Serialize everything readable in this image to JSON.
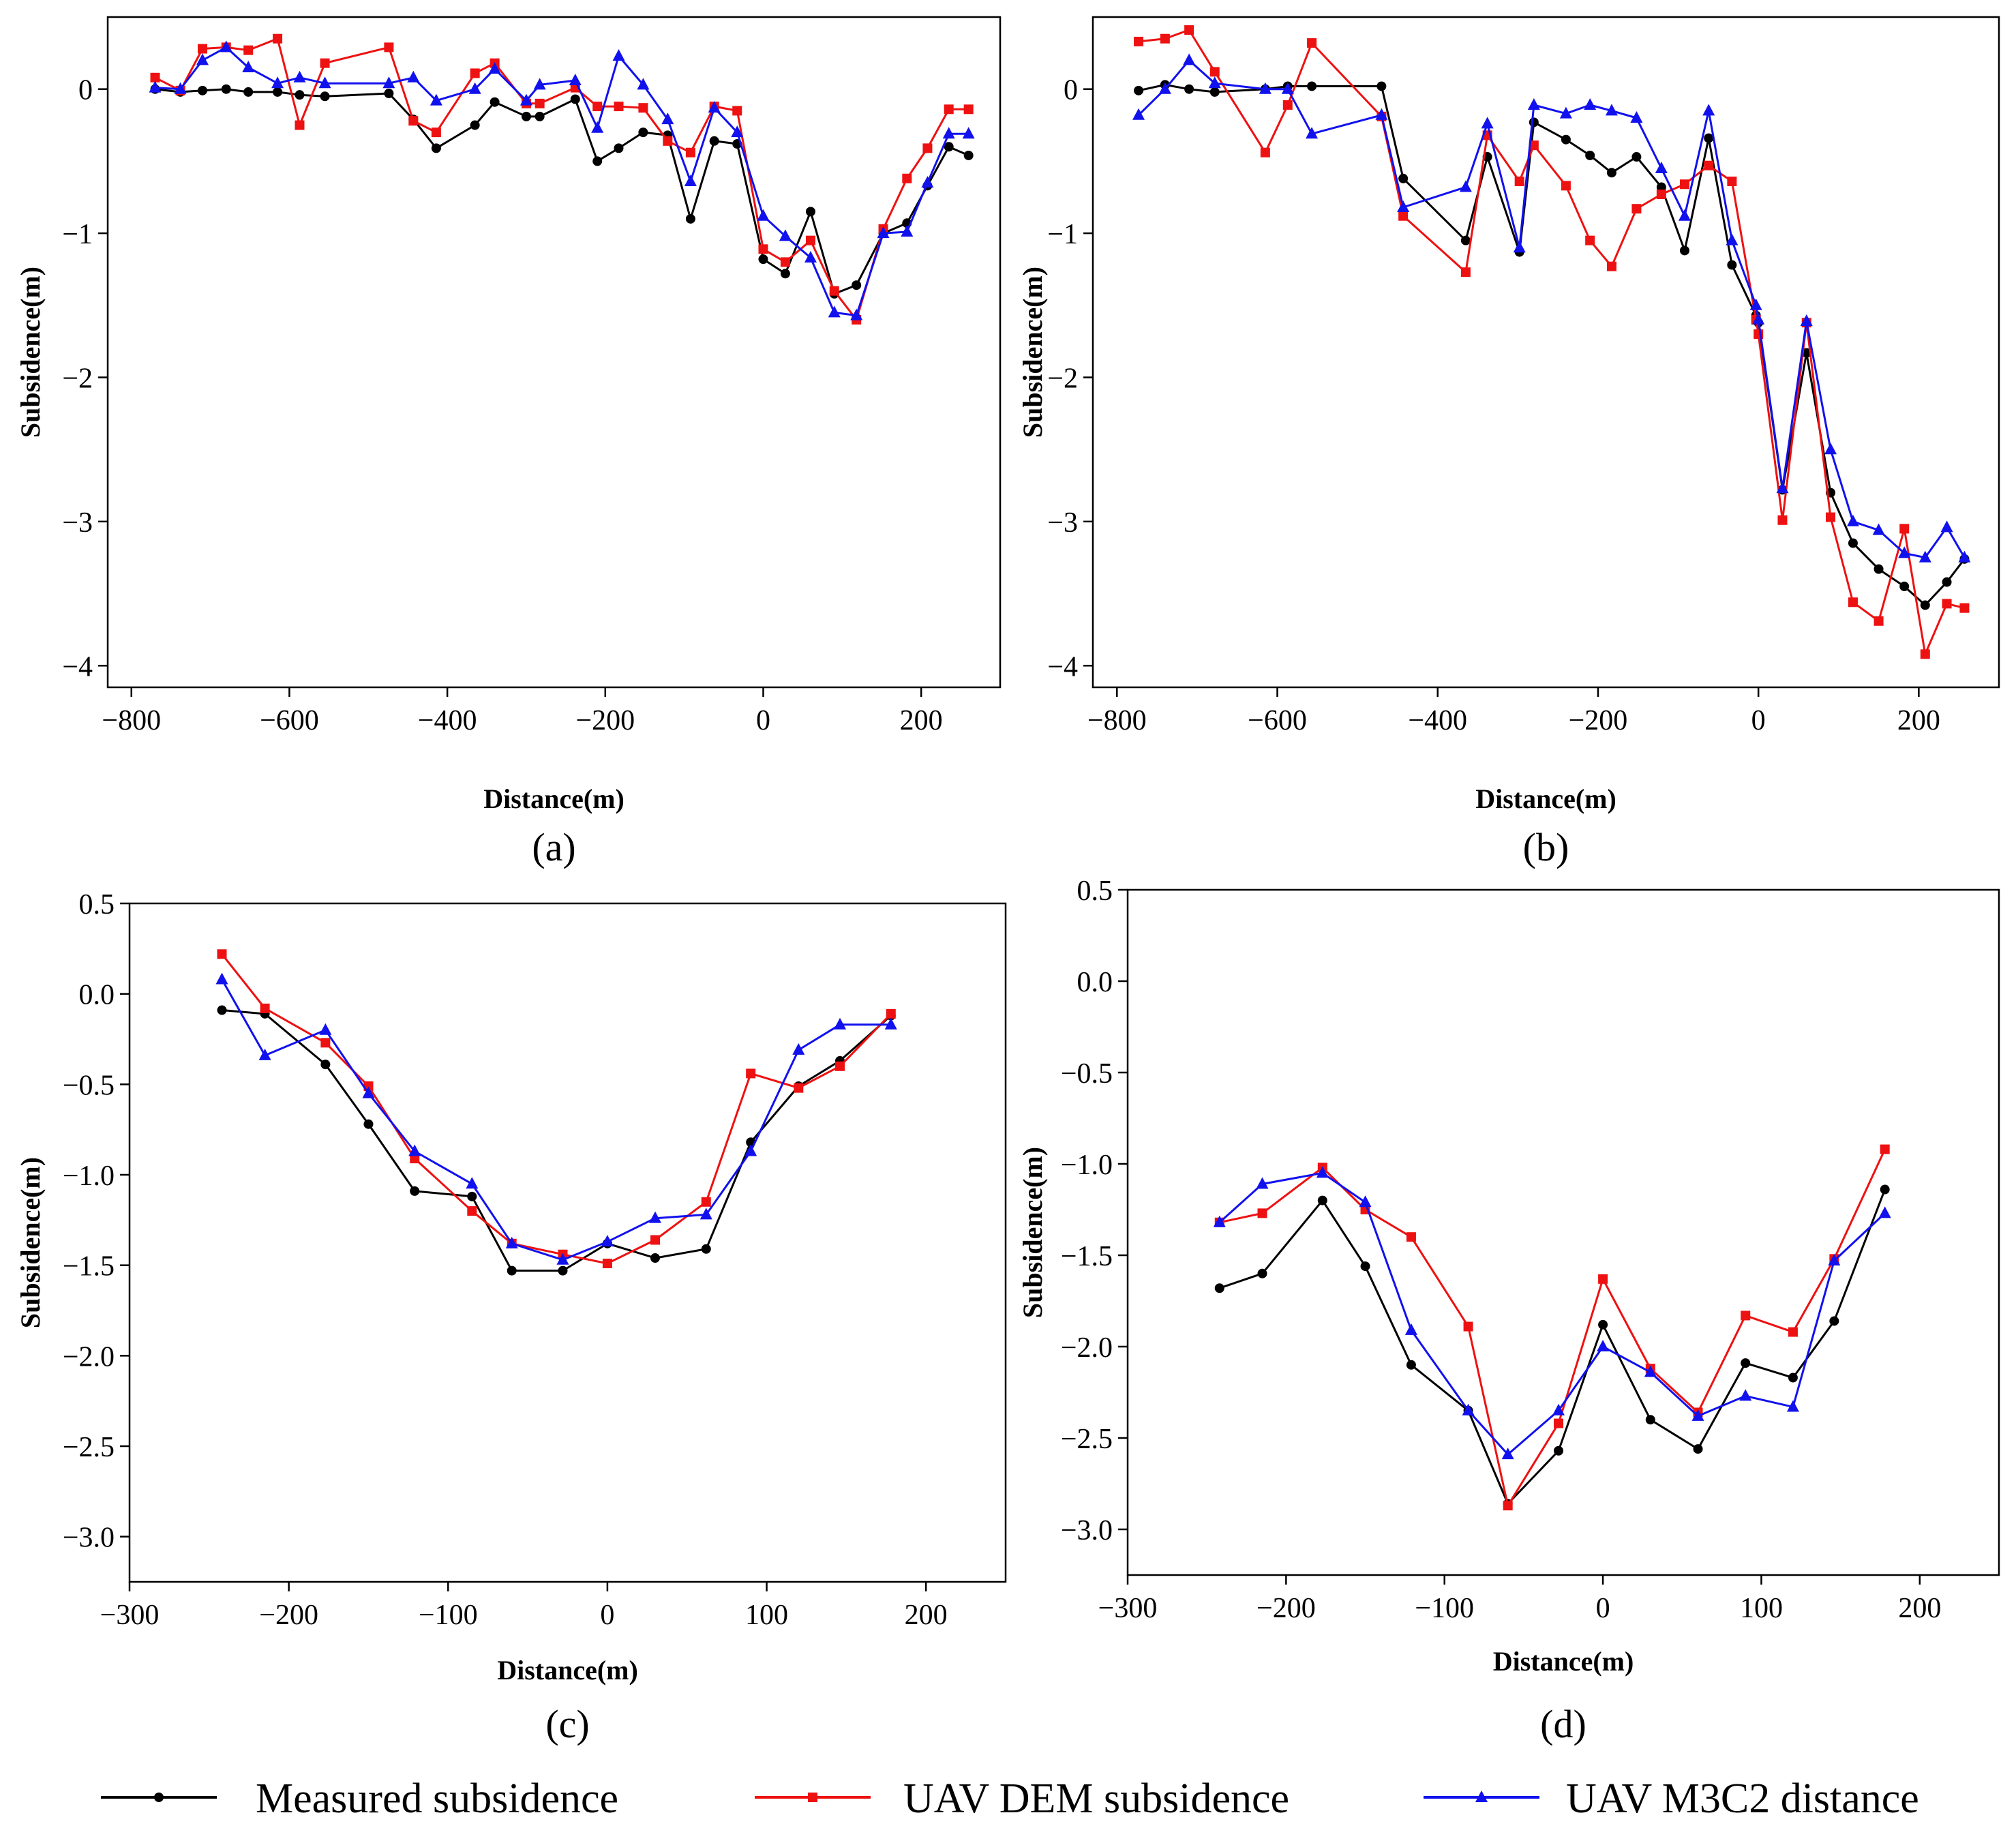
{
  "series_styles": [
    {
      "name": "Measured subsidence",
      "color": "#000000",
      "marker": "circle"
    },
    {
      "name": "UAV DEM subsidence",
      "color": "#ee1111",
      "marker": "square"
    },
    {
      "name": "UAV M3C2 distance",
      "color": "#1111ee",
      "marker": "triangle"
    }
  ],
  "legend": {
    "items": [
      "Measured subsidence",
      "UAV DEM subsidence",
      "UAV M3C2 distance"
    ]
  },
  "chart_data": [
    {
      "id": "a",
      "panel_label": "(a)",
      "type": "line",
      "xlabel": "Distance(m)",
      "ylabel": "Subsidence(m)",
      "xlim": [
        -830,
        300
      ],
      "ylim": [
        -4.15,
        0.5
      ],
      "xticks": [
        -800,
        -600,
        -400,
        -200,
        0,
        200
      ],
      "yticks": [
        -4,
        -3,
        -2,
        -1,
        0
      ],
      "xtick_labels": [
        "−800",
        "−600",
        "−400",
        "−200",
        "0",
        "200"
      ],
      "ytick_labels": [
        "−4",
        "−3",
        "−2",
        "−1",
        "0"
      ],
      "series": [
        {
          "name": "Measured subsidence",
          "x": [
            -770,
            -738,
            -710,
            -680,
            -652,
            -615,
            -587,
            -555,
            -474,
            -443,
            -414,
            -365,
            -340,
            -300,
            -283,
            -238,
            -210,
            -183,
            -152,
            -121,
            -92,
            -62,
            -33,
            0,
            28,
            60,
            90,
            118,
            152,
            182,
            208,
            235,
            260
          ],
          "y": [
            0,
            -0.02,
            -0.01,
            0,
            -0.02,
            -0.02,
            -0.04,
            -0.05,
            -0.03,
            -0.21,
            -0.41,
            -0.25,
            -0.09,
            -0.19,
            -0.19,
            -0.07,
            -0.5,
            -0.41,
            -0.3,
            -0.32,
            -0.9,
            -0.36,
            -0.38,
            -1.18,
            -1.28,
            -0.85,
            -1.42,
            -1.36,
            -1.0,
            -0.93,
            -0.67,
            -0.4,
            -0.46
          ]
        },
        {
          "name": "UAV DEM subsidence",
          "x": [
            -770,
            -738,
            -710,
            -680,
            -652,
            -615,
            -587,
            -555,
            -474,
            -443,
            -414,
            -365,
            -340,
            -300,
            -283,
            -238,
            -210,
            -183,
            -152,
            -121,
            -92,
            -62,
            -33,
            0,
            28,
            60,
            90,
            118,
            152,
            182,
            208,
            235,
            260
          ],
          "y": [
            0.08,
            -0.01,
            0.28,
            0.29,
            0.27,
            0.35,
            -0.25,
            0.18,
            0.29,
            -0.22,
            -0.3,
            0.11,
            0.18,
            -0.1,
            -0.1,
            0.01,
            -0.12,
            -0.12,
            -0.13,
            -0.36,
            -0.44,
            -0.12,
            -0.15,
            -1.11,
            -1.2,
            -1.05,
            -1.4,
            -1.6,
            -0.97,
            -0.62,
            -0.41,
            -0.14,
            -0.14
          ]
        },
        {
          "name": "UAV M3C2 distance",
          "x": [
            -770,
            -738,
            -710,
            -680,
            -652,
            -615,
            -587,
            -555,
            -474,
            -443,
            -414,
            -365,
            -340,
            -300,
            -283,
            -238,
            -210,
            -183,
            -152,
            -121,
            -92,
            -62,
            -33,
            0,
            28,
            60,
            90,
            118,
            152,
            182,
            208,
            235,
            260
          ],
          "y": [
            0.01,
            0.0,
            0.2,
            0.29,
            0.15,
            0.04,
            0.08,
            0.04,
            0.04,
            0.08,
            -0.08,
            0.0,
            0.14,
            -0.08,
            0.03,
            0.06,
            -0.27,
            0.23,
            0.03,
            -0.21,
            -0.64,
            -0.13,
            -0.3,
            -0.88,
            -1.02,
            -1.17,
            -1.55,
            -1.57,
            -1.0,
            -0.99,
            -0.65,
            -0.31,
            -0.31
          ]
        }
      ]
    },
    {
      "id": "b",
      "panel_label": "(b)",
      "type": "line",
      "xlabel": "Distance(m)",
      "ylabel": "Subsidence(m)",
      "xlim": [
        -830,
        300
      ],
      "ylim": [
        -4.15,
        0.5
      ],
      "xticks": [
        -800,
        -600,
        -400,
        -200,
        0,
        200
      ],
      "yticks": [
        -4,
        -3,
        -2,
        -1,
        0
      ],
      "xtick_labels": [
        "−800",
        "−600",
        "−400",
        "−200",
        "0",
        "200"
      ],
      "ytick_labels": [
        "−4",
        "−3",
        "−2",
        "−1",
        "0"
      ],
      "series": [
        {
          "name": "Measured subsidence",
          "x": [
            -773,
            -740,
            -710,
            -678,
            -615,
            -587,
            -557,
            -470,
            -443,
            -365,
            -338,
            -298,
            -280,
            -240,
            -210,
            -183,
            -152,
            -121,
            -92,
            -62,
            -33,
            -3,
            0,
            30,
            60,
            90,
            118,
            150,
            182,
            208,
            235,
            257
          ],
          "y": [
            -0.01,
            0.03,
            0.0,
            -0.02,
            0.0,
            0.02,
            0.02,
            0.02,
            -0.62,
            -1.05,
            -0.47,
            -1.13,
            -0.23,
            -0.35,
            -0.46,
            -0.58,
            -0.47,
            -0.68,
            -1.12,
            -0.34,
            -1.22,
            -1.57,
            -1.62,
            -2.78,
            -1.83,
            -2.8,
            -3.15,
            -3.33,
            -3.45,
            -3.58,
            -3.42,
            -3.26
          ]
        },
        {
          "name": "UAV DEM subsidence",
          "x": [
            -773,
            -740,
            -710,
            -678,
            -615,
            -587,
            -557,
            -470,
            -443,
            -365,
            -338,
            -298,
            -280,
            -240,
            -210,
            -183,
            -152,
            -121,
            -92,
            -62,
            -33,
            -3,
            0,
            30,
            60,
            90,
            118,
            150,
            182,
            208,
            235,
            257
          ],
          "y": [
            0.33,
            0.35,
            0.41,
            0.12,
            -0.44,
            -0.11,
            0.32,
            -0.19,
            -0.88,
            -1.27,
            -0.32,
            -0.64,
            -0.39,
            -0.67,
            -1.05,
            -1.23,
            -0.83,
            -0.73,
            -0.66,
            -0.53,
            -0.64,
            -1.6,
            -1.7,
            -2.99,
            -1.62,
            -2.97,
            -3.56,
            -3.69,
            -3.05,
            -3.92,
            -3.57,
            -3.6
          ]
        },
        {
          "name": "UAV M3C2 distance",
          "x": [
            -773,
            -740,
            -710,
            -678,
            -615,
            -587,
            -557,
            -470,
            -443,
            -365,
            -338,
            -298,
            -280,
            -240,
            -210,
            -183,
            -152,
            -121,
            -92,
            -62,
            -33,
            -3,
            0,
            30,
            60,
            90,
            118,
            150,
            182,
            208,
            235,
            257
          ],
          "y": [
            -0.18,
            0.0,
            0.2,
            0.04,
            0.0,
            0.0,
            -0.31,
            -0.18,
            -0.82,
            -0.68,
            -0.24,
            -1.1,
            -0.11,
            -0.17,
            -0.11,
            -0.15,
            -0.2,
            -0.55,
            -0.88,
            -0.15,
            -1.05,
            -1.5,
            -1.6,
            -2.77,
            -1.61,
            -2.5,
            -3.0,
            -3.06,
            -3.22,
            -3.25,
            -3.04,
            -3.25
          ]
        }
      ]
    },
    {
      "id": "c",
      "panel_label": "(c)",
      "type": "line",
      "xlabel": "Distance(m)",
      "ylabel": "Subsidence(m)",
      "xlim": [
        -300,
        250
      ],
      "ylim": [
        -3.25,
        0.5
      ],
      "xticks": [
        -300,
        -200,
        -100,
        0,
        100,
        200
      ],
      "yticks": [
        0.5,
        0.0,
        -0.5,
        -1.0,
        -1.5,
        -2.0,
        -2.5,
        -3.0
      ],
      "xtick_labels": [
        "−300",
        "−200",
        "−100",
        "0",
        "100",
        "200"
      ],
      "ytick_labels": [
        "0.5",
        "0.0",
        "−0.5",
        "−1.0",
        "−1.5",
        "−2.0",
        "−2.5",
        "−3.0"
      ],
      "series": [
        {
          "name": "Measured subsidence",
          "x": [
            -242,
            -215,
            -177,
            -150,
            -121,
            -85,
            -60,
            -28,
            0,
            30,
            62,
            90,
            120,
            146,
            178
          ],
          "y": [
            -0.09,
            -0.11,
            -0.39,
            -0.72,
            -1.09,
            -1.12,
            -1.53,
            -1.53,
            -1.38,
            -1.46,
            -1.41,
            -0.82,
            -0.51,
            -0.37,
            -0.12
          ]
        },
        {
          "name": "UAV DEM subsidence",
          "x": [
            -242,
            -215,
            -177,
            -150,
            -121,
            -85,
            -60,
            -28,
            0,
            30,
            62,
            90,
            120,
            146,
            178
          ],
          "y": [
            0.22,
            -0.08,
            -0.27,
            -0.51,
            -0.91,
            -1.2,
            -1.38,
            -1.44,
            -1.49,
            -1.36,
            -1.15,
            -0.44,
            -0.52,
            -0.4,
            -0.11
          ]
        },
        {
          "name": "UAV M3C2 distance",
          "x": [
            -242,
            -215,
            -177,
            -150,
            -121,
            -85,
            -60,
            -28,
            0,
            30,
            62,
            90,
            120,
            146,
            178
          ],
          "y": [
            0.08,
            -0.34,
            -0.2,
            -0.55,
            -0.87,
            -1.05,
            -1.38,
            -1.47,
            -1.37,
            -1.24,
            -1.22,
            -0.87,
            -0.31,
            -0.17,
            -0.17
          ]
        }
      ]
    },
    {
      "id": "d",
      "panel_label": "(d)",
      "type": "line",
      "xlabel": "Distance(m)",
      "ylabel": "Subsidence(m)",
      "xlim": [
        -300,
        250
      ],
      "ylim": [
        -3.25,
        0.5
      ],
      "xticks": [
        -300,
        -200,
        -100,
        0,
        100,
        200
      ],
      "yticks": [
        0.5,
        0.0,
        -0.5,
        -1.0,
        -1.5,
        -2.0,
        -2.5,
        -3.0
      ],
      "xtick_labels": [
        "−300",
        "−200",
        "−100",
        "0",
        "100",
        "200"
      ],
      "ytick_labels": [
        "0.5",
        "0.0",
        "−0.5",
        "−1.0",
        "−1.5",
        "−2.0",
        "−2.5",
        "−3.0"
      ],
      "series": [
        {
          "name": "Measured subsidence",
          "x": [
            -242,
            -215,
            -177,
            -150,
            -121,
            -85,
            -60,
            -28,
            0,
            30,
            60,
            90,
            120,
            146,
            178
          ],
          "y": [
            -1.68,
            -1.6,
            -1.2,
            -1.56,
            -2.1,
            -2.35,
            -2.86,
            -2.57,
            -1.88,
            -2.4,
            -2.56,
            -2.09,
            -2.17,
            -1.86,
            -1.14
          ]
        },
        {
          "name": "UAV DEM subsidence",
          "x": [
            -242,
            -215,
            -177,
            -150,
            -121,
            -85,
            -60,
            -28,
            0,
            30,
            60,
            90,
            120,
            146,
            178
          ],
          "y": [
            -1.32,
            -1.27,
            -1.02,
            -1.25,
            -1.4,
            -1.89,
            -2.87,
            -2.42,
            -1.63,
            -2.12,
            -2.36,
            -1.83,
            -1.92,
            -1.52,
            -0.92
          ]
        },
        {
          "name": "UAV M3C2 distance",
          "x": [
            -242,
            -215,
            -177,
            -150,
            -121,
            -85,
            -60,
            -28,
            0,
            30,
            60,
            90,
            120,
            146,
            178
          ],
          "y": [
            -1.32,
            -1.11,
            -1.05,
            -1.21,
            -1.91,
            -2.35,
            -2.59,
            -2.35,
            -2.0,
            -2.14,
            -2.38,
            -2.27,
            -2.33,
            -1.53,
            -1.27
          ]
        }
      ]
    }
  ]
}
